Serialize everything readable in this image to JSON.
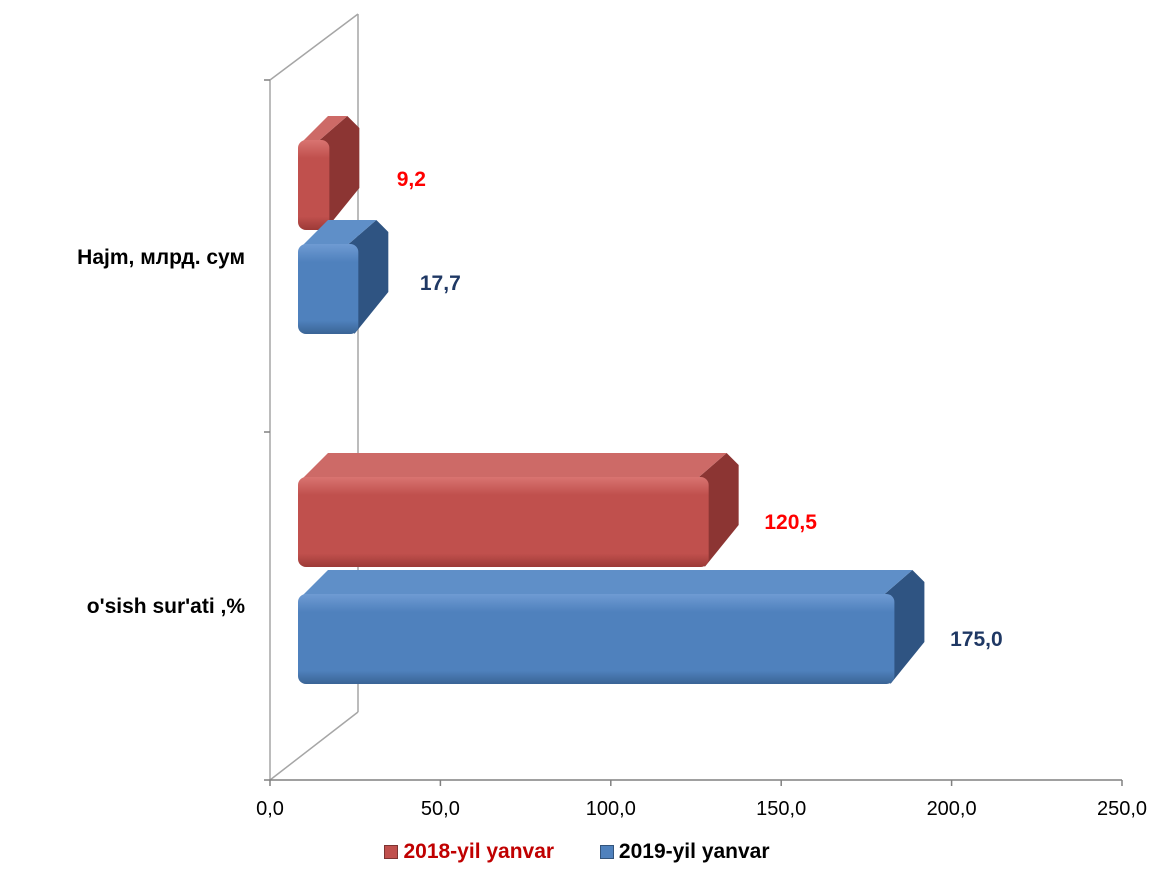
{
  "chart_data": {
    "type": "bar",
    "orientation": "horizontal",
    "style": "3d",
    "categories": [
      "Hajm, млрд. сум",
      "o'sish  sur'ati ,%"
    ],
    "series": [
      {
        "name": "2018-yil yanvar",
        "values": [
          9.2,
          120.5
        ],
        "labels": [
          "9,2",
          "120,5"
        ],
        "color": "#c0504d",
        "label_color": "#ff0000",
        "legend_color": "#c00000"
      },
      {
        "name": "2019-yil yanvar",
        "values": [
          17.7,
          175.0
        ],
        "labels": [
          "17,7",
          "175,0"
        ],
        "color": "#4f81bd",
        "label_color": "#1f3864",
        "legend_color": "#000000"
      }
    ],
    "xlim": [
      0,
      250
    ],
    "xticks": [
      0,
      50,
      100,
      150,
      200,
      250
    ],
    "xtick_labels": [
      "0,0",
      "50,0",
      "100,0",
      "150,0",
      "200,0",
      "250,0"
    ],
    "legend": "bottom",
    "grid": false
  }
}
